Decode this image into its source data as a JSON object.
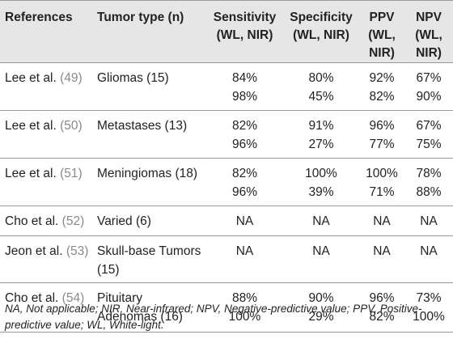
{
  "headers": {
    "references": "References",
    "tumor_type": "Tumor type (n)",
    "sensitivity_l1": "Sensitivity",
    "sensitivity_l2": "(WL, NIR)",
    "specificity_l1": "Specificity",
    "specificity_l2": "(WL, NIR)",
    "ppv_l1": "PPV",
    "ppv_l2": "(WL,",
    "ppv_l3": "NIR)",
    "npv_l1": "NPV",
    "npv_l2": "(WL,",
    "npv_l3": "NIR)"
  },
  "rows": [
    {
      "ref_name": "Lee et al.",
      "ref_num": "(49)",
      "tumor_l1": "Gliomas (15)",
      "tumor_l2": "",
      "sens": [
        "84%",
        "98%"
      ],
      "spec": [
        "80%",
        "45%"
      ],
      "ppv": [
        "92%",
        "82%"
      ],
      "npv": [
        "67%",
        "90%"
      ]
    },
    {
      "ref_name": "Lee et al.",
      "ref_num": "(50)",
      "tumor_l1": "Metastases (13)",
      "tumor_l2": "",
      "sens": [
        "82%",
        "96%"
      ],
      "spec": [
        "91%",
        "27%"
      ],
      "ppv": [
        "96%",
        "77%"
      ],
      "npv": [
        "67%",
        "75%"
      ]
    },
    {
      "ref_name": "Lee et al.",
      "ref_num": "(51)",
      "tumor_l1": "Meningiomas (18)",
      "tumor_l2": "",
      "sens": [
        "82%",
        "96%"
      ],
      "spec": [
        "100%",
        "39%"
      ],
      "ppv": [
        "100%",
        "71%"
      ],
      "npv": [
        "78%",
        "88%"
      ]
    },
    {
      "ref_name": "Cho et al.",
      "ref_num": "(52)",
      "tumor_l1": "Varied (6)",
      "tumor_l2": "",
      "sens": [
        "NA",
        ""
      ],
      "spec": [
        "NA",
        ""
      ],
      "ppv": [
        "NA",
        ""
      ],
      "npv": [
        "NA",
        ""
      ]
    },
    {
      "ref_name": "Jeon et al.",
      "ref_num": "(53)",
      "tumor_l1": "Skull-base Tumors",
      "tumor_l2": "(15)",
      "sens": [
        "NA",
        ""
      ],
      "spec": [
        "NA",
        ""
      ],
      "ppv": [
        "NA",
        ""
      ],
      "npv": [
        "NA",
        ""
      ]
    },
    {
      "ref_name": "Cho et al.",
      "ref_num": "(54)",
      "tumor_l1": "Pituitary",
      "tumor_l2": "Adenomas (16)",
      "sens": [
        "88%",
        "100%"
      ],
      "spec": [
        "90%",
        "29%"
      ],
      "ppv": [
        "96%",
        "82%"
      ],
      "npv": [
        "73%",
        "100%"
      ]
    }
  ],
  "footnote": "NA, Not applicable; NIR, Near-infrared; NPV, Negative-predictive value; PPV, Positive-predictive value; WL, White-light."
}
